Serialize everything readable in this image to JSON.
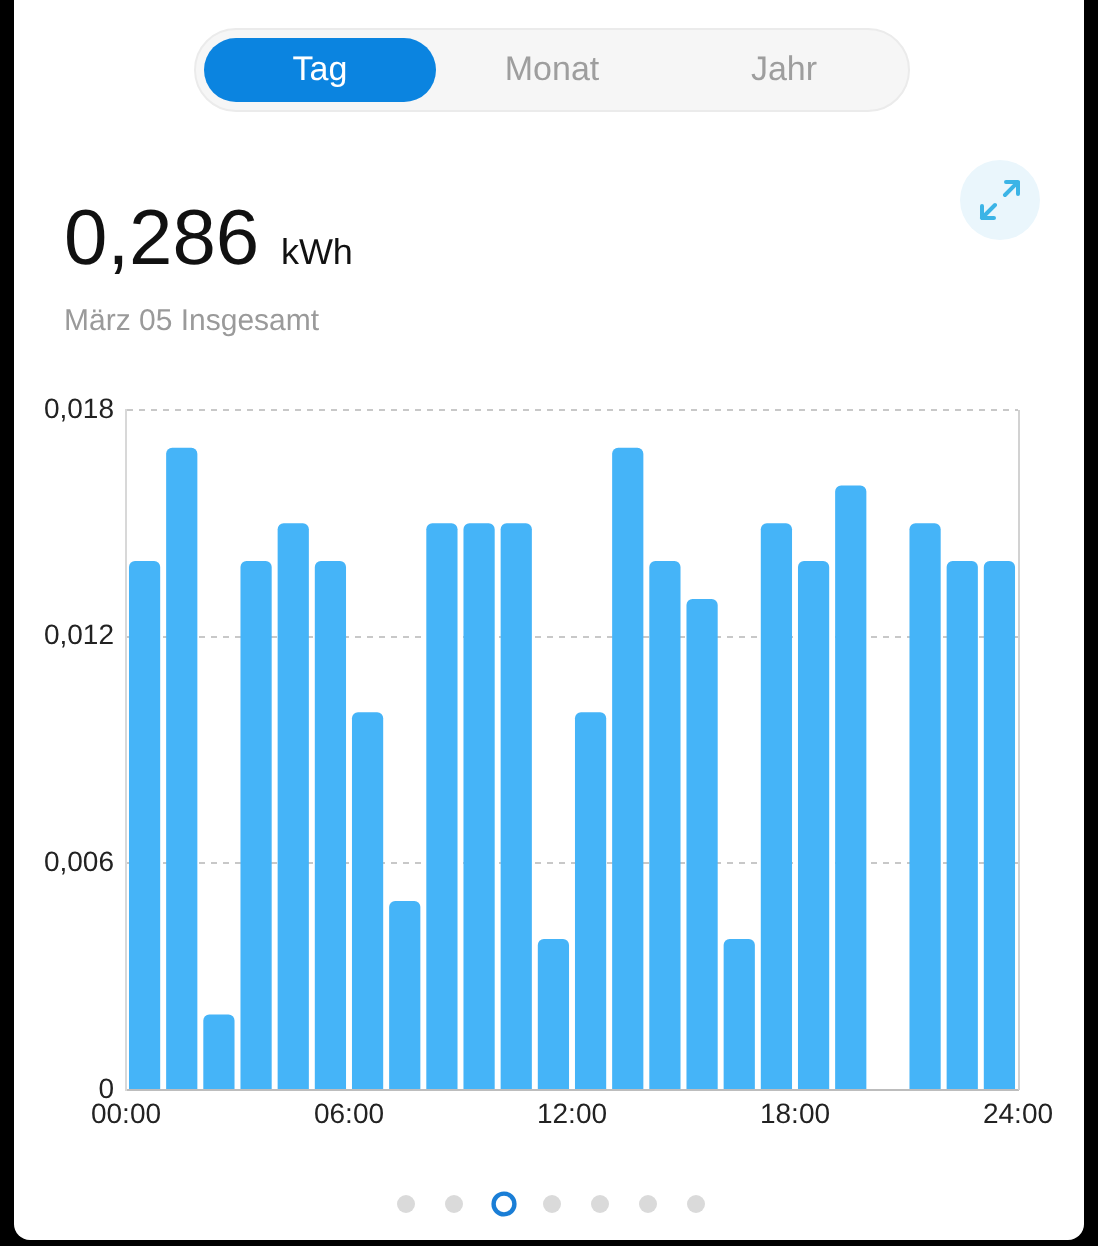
{
  "chart_data": {
    "type": "bar",
    "title": "0,286 kWh",
    "subtitle": "März 05 Insgesamt",
    "annotations": [
      "Tag",
      "Monat",
      "Jahr"
    ],
    "x": [
      0.5,
      1.5,
      2.5,
      3.5,
      4.5,
      5.5,
      6.5,
      7.5,
      8.5,
      9.5,
      10.5,
      11.5,
      12.5,
      13.5,
      14.5,
      15.5,
      16.5,
      17.5,
      18.5,
      19.5,
      20.5,
      21.5,
      22.5,
      23.5
    ],
    "values": [
      0.014,
      0.017,
      0.002,
      0.014,
      0.015,
      0.014,
      0.01,
      0.005,
      0.015,
      0.015,
      0.015,
      0.004,
      0.01,
      0.017,
      0.014,
      0.013,
      0.004,
      0.015,
      0.014,
      0.016,
      null,
      0.015,
      0.014,
      0.014
    ],
    "color": "#45b4f8",
    "xlim": [
      0,
      24
    ],
    "xticks": [
      {
        "value": 0,
        "label": "00:00"
      },
      {
        "value": 6,
        "label": "06:00"
      },
      {
        "value": 12,
        "label": "12:00"
      },
      {
        "value": 18,
        "label": "18:00"
      },
      {
        "value": 24,
        "label": "24:00"
      }
    ],
    "ylim": [
      0,
      0.018
    ],
    "yticks": [
      0,
      {
        "value": 0.006,
        "label": "0,006"
      },
      {
        "value": 0.012,
        "label": "0,012"
      },
      {
        "value": 0.018,
        "label": "0,018"
      }
    ],
    "grid": "y"
  }
}
